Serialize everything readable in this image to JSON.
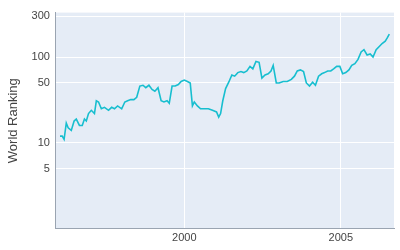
{
  "chart_data": {
    "type": "line",
    "y_label": "World Ranking",
    "color": "#17becf",
    "log": "y",
    "grid": true,
    "xlim": [
      1995.9,
      2006.7
    ],
    "xticks": [
      2000,
      2005
    ],
    "ylim": [
      1,
      330
    ],
    "yticks": [
      5,
      10,
      50,
      100,
      300
    ],
    "x": [
      1996.03,
      1996.1,
      1996.16,
      1996.23,
      1996.29,
      1996.39,
      1996.48,
      1996.55,
      1996.65,
      1996.74,
      1996.81,
      1996.87,
      1996.94,
      1997.03,
      1997.13,
      1997.19,
      1997.26,
      1997.35,
      1997.45,
      1997.58,
      1997.68,
      1997.77,
      1997.87,
      1998.0,
      1998.1,
      1998.19,
      1998.29,
      1998.39,
      1998.48,
      1998.58,
      1998.68,
      1998.77,
      1998.87,
      1998.97,
      1999.06,
      1999.16,
      1999.26,
      1999.35,
      1999.45,
      1999.52,
      1999.61,
      1999.71,
      1999.81,
      1999.9,
      2000.0,
      2000.1,
      2000.19,
      2000.26,
      2000.32,
      2000.42,
      2000.52,
      2000.65,
      2000.77,
      2000.9,
      2001.03,
      2001.1,
      2001.16,
      2001.23,
      2001.32,
      2001.42,
      2001.52,
      2001.61,
      2001.71,
      2001.81,
      2001.9,
      2002.0,
      2002.1,
      2002.19,
      2002.29,
      2002.39,
      2002.48,
      2002.58,
      2002.68,
      2002.77,
      2002.84,
      2002.94,
      2003.03,
      2003.16,
      2003.29,
      2003.42,
      2003.52,
      2003.61,
      2003.71,
      2003.81,
      2003.9,
      2004.0,
      2004.1,
      2004.19,
      2004.29,
      2004.39,
      2004.48,
      2004.58,
      2004.68,
      2004.77,
      2004.87,
      2004.97,
      2005.06,
      2005.16,
      2005.26,
      2005.35,
      2005.45,
      2005.55,
      2005.65,
      2005.74,
      2005.84,
      2005.94,
      2006.03,
      2006.13,
      2006.23,
      2006.32,
      2006.42,
      2006.48,
      2006.55
    ],
    "values": [
      12,
      12,
      11,
      17,
      15,
      14,
      18,
      19,
      16,
      16,
      19,
      18,
      22,
      24,
      22,
      31,
      30,
      25,
      26,
      24,
      26,
      25,
      27,
      25,
      30,
      31,
      32,
      32,
      34,
      46,
      47,
      44,
      47,
      42,
      40,
      44,
      31,
      30,
      31,
      29,
      46,
      46,
      48,
      52,
      54,
      52,
      50,
      27,
      30,
      27,
      25,
      25,
      25,
      24,
      23,
      20,
      22,
      31,
      43,
      51,
      62,
      60,
      66,
      68,
      66,
      69,
      78,
      73,
      89,
      87,
      57,
      62,
      64,
      69,
      80,
      50,
      50,
      52,
      52,
      55,
      60,
      69,
      71,
      68,
      50,
      46,
      51,
      47,
      60,
      64,
      66,
      69,
      69,
      73,
      78,
      78,
      64,
      66,
      71,
      80,
      84,
      94,
      115,
      122,
      106,
      109,
      100,
      122,
      133,
      144,
      153,
      166,
      185
    ]
  }
}
